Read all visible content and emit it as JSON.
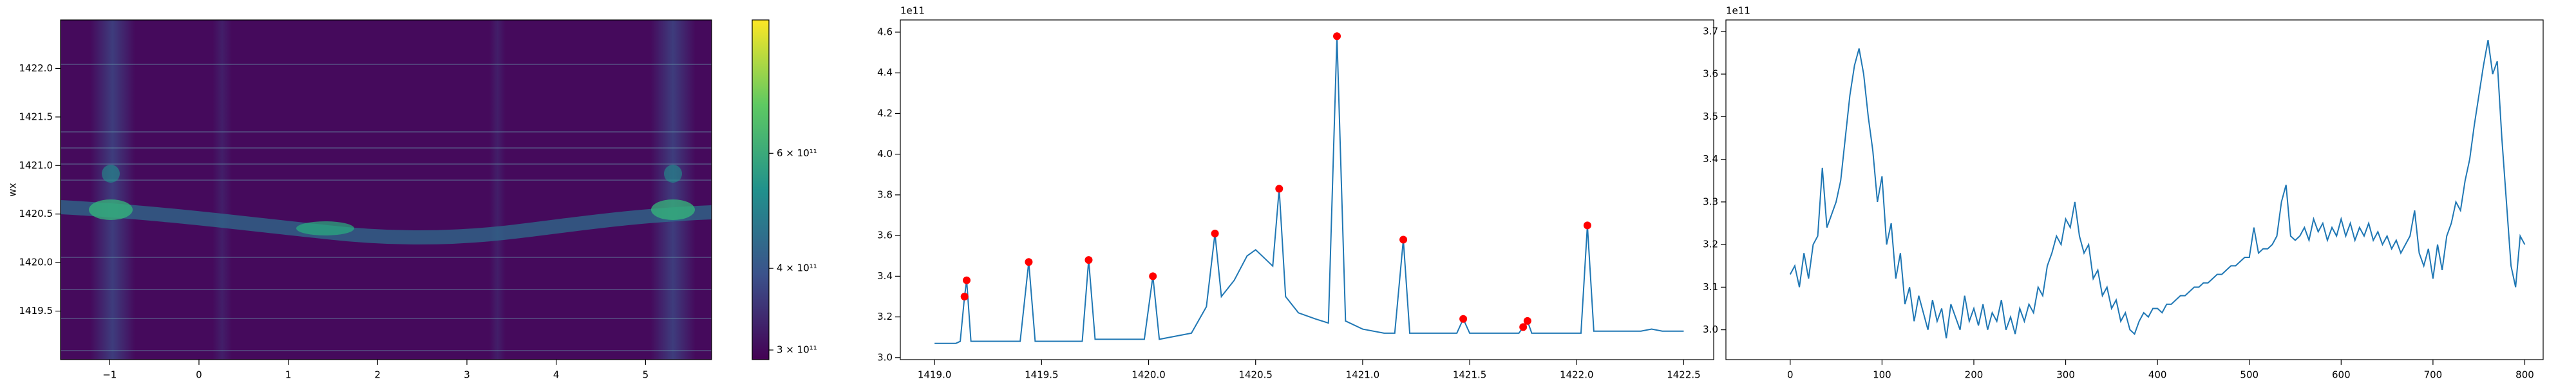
{
  "chart_data": [
    {
      "type": "heatmap",
      "ylabel": "wx",
      "xlim": [
        -1.55,
        5.74
      ],
      "ylim": [
        1419.0,
        1422.5
      ],
      "xticks": [
        {
          "value": -1,
          "label": "−1"
        },
        0,
        1,
        2,
        3,
        4,
        5
      ],
      "yticks": [
        1419.5,
        {
          "value": 1420.0,
          "label": "1420.0"
        },
        1420.5,
        {
          "value": 1421.0,
          "label": "1421.0"
        },
        1421.5,
        {
          "value": 1422.0,
          "label": "1422.0"
        }
      ],
      "colorbar": {
        "log": true,
        "clim": [
          290000000000,
          960000000000
        ],
        "ticks": [
          {
            "value": 300000000000,
            "label": "3 × 10¹¹"
          },
          {
            "value": 400000000000,
            "label": "4 × 10¹¹"
          },
          {
            "value": 600000000000,
            "label": "6 × 10¹¹"
          }
        ]
      }
    },
    {
      "type": "line",
      "offset_text": "1e11",
      "xlim": [
        1418.84,
        1422.64
      ],
      "ylim": [
        2.99,
        4.66
      ],
      "xticks": [
        {
          "value": 1419.0,
          "label": "1419.0"
        },
        1419.5,
        {
          "value": 1420.0,
          "label": "1420.0"
        },
        1420.5,
        {
          "value": 1421.0,
          "label": "1421.0"
        },
        1421.5,
        {
          "value": 1422.0,
          "label": "1422.0"
        },
        1422.5
      ],
      "yticks": [
        {
          "value": 3.0,
          "label": "3.0"
        },
        3.2,
        3.4,
        3.6,
        3.8,
        {
          "value": 4.0,
          "label": "4.0"
        },
        4.2,
        4.4,
        4.6
      ],
      "series": [
        {
          "type": "line",
          "color": "#1f77b4",
          "x": [
            1419.0,
            1419.1,
            1419.12,
            1419.14,
            1419.15,
            1419.17,
            1419.4,
            1419.44,
            1419.47,
            1419.69,
            1419.72,
            1419.75,
            1419.98,
            1420.02,
            1420.05,
            1420.2,
            1420.27,
            1420.31,
            1420.34,
            1420.4,
            1420.46,
            1420.5,
            1420.55,
            1420.58,
            1420.61,
            1420.64,
            1420.7,
            1420.78,
            1420.84,
            1420.88,
            1420.92,
            1421.0,
            1421.1,
            1421.15,
            1421.19,
            1421.22,
            1421.44,
            1421.47,
            1421.5,
            1421.73,
            1421.75,
            1421.77,
            1421.79,
            1422.02,
            1422.05,
            1422.08,
            1422.3,
            1422.35,
            1422.4,
            1422.5
          ],
          "values": [
            3.07,
            3.07,
            3.08,
            3.3,
            3.38,
            3.08,
            3.08,
            3.47,
            3.08,
            3.08,
            3.48,
            3.09,
            3.09,
            3.4,
            3.09,
            3.12,
            3.25,
            3.61,
            3.3,
            3.38,
            3.5,
            3.53,
            3.48,
            3.45,
            3.83,
            3.3,
            3.22,
            3.19,
            3.17,
            4.58,
            3.18,
            3.14,
            3.12,
            3.12,
            3.58,
            3.12,
            3.12,
            3.19,
            3.12,
            3.12,
            3.15,
            3.18,
            3.12,
            3.12,
            3.65,
            3.13,
            3.13,
            3.14,
            3.13,
            3.13
          ]
        },
        {
          "type": "scatter",
          "color": "#ff0000",
          "x": [
            1419.14,
            1419.15,
            1419.44,
            1419.72,
            1420.02,
            1420.31,
            1420.61,
            1420.88,
            1421.19,
            1421.47,
            1421.75,
            1421.77,
            1422.05
          ],
          "values": [
            3.3,
            3.38,
            3.47,
            3.48,
            3.4,
            3.61,
            3.83,
            4.58,
            3.58,
            3.19,
            3.15,
            3.18,
            3.65
          ]
        }
      ]
    },
    {
      "type": "line",
      "offset_text": "1e11",
      "xlim": [
        -70,
        820
      ],
      "ylim": [
        2.93,
        3.727
      ],
      "xticks": [
        0,
        100,
        200,
        300,
        400,
        500,
        600,
        700,
        800
      ],
      "yticks": [
        {
          "value": 3.0,
          "label": "3.0"
        },
        3.1,
        3.2,
        3.3,
        3.4,
        3.5,
        3.6,
        3.7
      ],
      "series": [
        {
          "type": "line",
          "color": "#1f77b4",
          "x": [
            0,
            5,
            10,
            15,
            20,
            25,
            30,
            35,
            40,
            45,
            50,
            55,
            60,
            65,
            70,
            75,
            80,
            85,
            90,
            95,
            100,
            105,
            110,
            115,
            120,
            125,
            130,
            135,
            140,
            145,
            150,
            155,
            160,
            165,
            170,
            175,
            180,
            185,
            190,
            195,
            200,
            205,
            210,
            215,
            220,
            225,
            230,
            235,
            240,
            245,
            250,
            255,
            260,
            265,
            270,
            275,
            280,
            285,
            290,
            295,
            300,
            305,
            310,
            315,
            320,
            325,
            330,
            335,
            340,
            345,
            350,
            355,
            360,
            365,
            370,
            375,
            380,
            385,
            390,
            395,
            400,
            405,
            410,
            415,
            420,
            425,
            430,
            435,
            440,
            445,
            450,
            455,
            460,
            465,
            470,
            475,
            480,
            485,
            490,
            495,
            500,
            505,
            510,
            515,
            520,
            525,
            530,
            535,
            540,
            545,
            550,
            555,
            560,
            565,
            570,
            575,
            580,
            585,
            590,
            595,
            600,
            605,
            610,
            615,
            620,
            625,
            630,
            635,
            640,
            645,
            650,
            655,
            660,
            665,
            670,
            675,
            680,
            685,
            690,
            695,
            700,
            705,
            710,
            715,
            720,
            725,
            730,
            735,
            740,
            745,
            750,
            755,
            760,
            765,
            770,
            775,
            780,
            785,
            790,
            795,
            800
          ],
          "values": [
            3.13,
            3.15,
            3.1,
            3.18,
            3.12,
            3.2,
            3.22,
            3.38,
            3.24,
            3.27,
            3.3,
            3.35,
            3.45,
            3.55,
            3.62,
            3.66,
            3.6,
            3.5,
            3.42,
            3.3,
            3.36,
            3.2,
            3.25,
            3.12,
            3.18,
            3.06,
            3.1,
            3.02,
            3.08,
            3.04,
            3.0,
            3.07,
            3.02,
            3.05,
            2.98,
            3.06,
            3.03,
            3.0,
            3.08,
            3.02,
            3.05,
            3.01,
            3.06,
            3.0,
            3.04,
            3.02,
            3.07,
            3.0,
            3.03,
            2.99,
            3.05,
            3.02,
            3.06,
            3.04,
            3.1,
            3.08,
            3.15,
            3.18,
            3.22,
            3.2,
            3.26,
            3.24,
            3.3,
            3.22,
            3.18,
            3.2,
            3.12,
            3.14,
            3.08,
            3.1,
            3.05,
            3.07,
            3.02,
            3.04,
            3.0,
            2.99,
            3.02,
            3.04,
            3.03,
            3.05,
            3.05,
            3.04,
            3.06,
            3.06,
            3.07,
            3.08,
            3.08,
            3.09,
            3.1,
            3.1,
            3.11,
            3.11,
            3.12,
            3.13,
            3.13,
            3.14,
            3.15,
            3.15,
            3.16,
            3.17,
            3.17,
            3.24,
            3.18,
            3.19,
            3.19,
            3.2,
            3.22,
            3.3,
            3.34,
            3.22,
            3.21,
            3.22,
            3.24,
            3.21,
            3.26,
            3.23,
            3.25,
            3.21,
            3.24,
            3.22,
            3.26,
            3.22,
            3.25,
            3.21,
            3.24,
            3.22,
            3.25,
            3.21,
            3.23,
            3.2,
            3.22,
            3.19,
            3.21,
            3.18,
            3.2,
            3.22,
            3.28,
            3.18,
            3.15,
            3.19,
            3.12,
            3.2,
            3.14,
            3.22,
            3.25,
            3.3,
            3.28,
            3.35,
            3.4,
            3.48,
            3.55,
            3.62,
            3.68,
            3.6,
            3.63,
            3.45,
            3.3,
            3.15,
            3.1,
            3.22,
            3.2
          ]
        }
      ]
    }
  ]
}
